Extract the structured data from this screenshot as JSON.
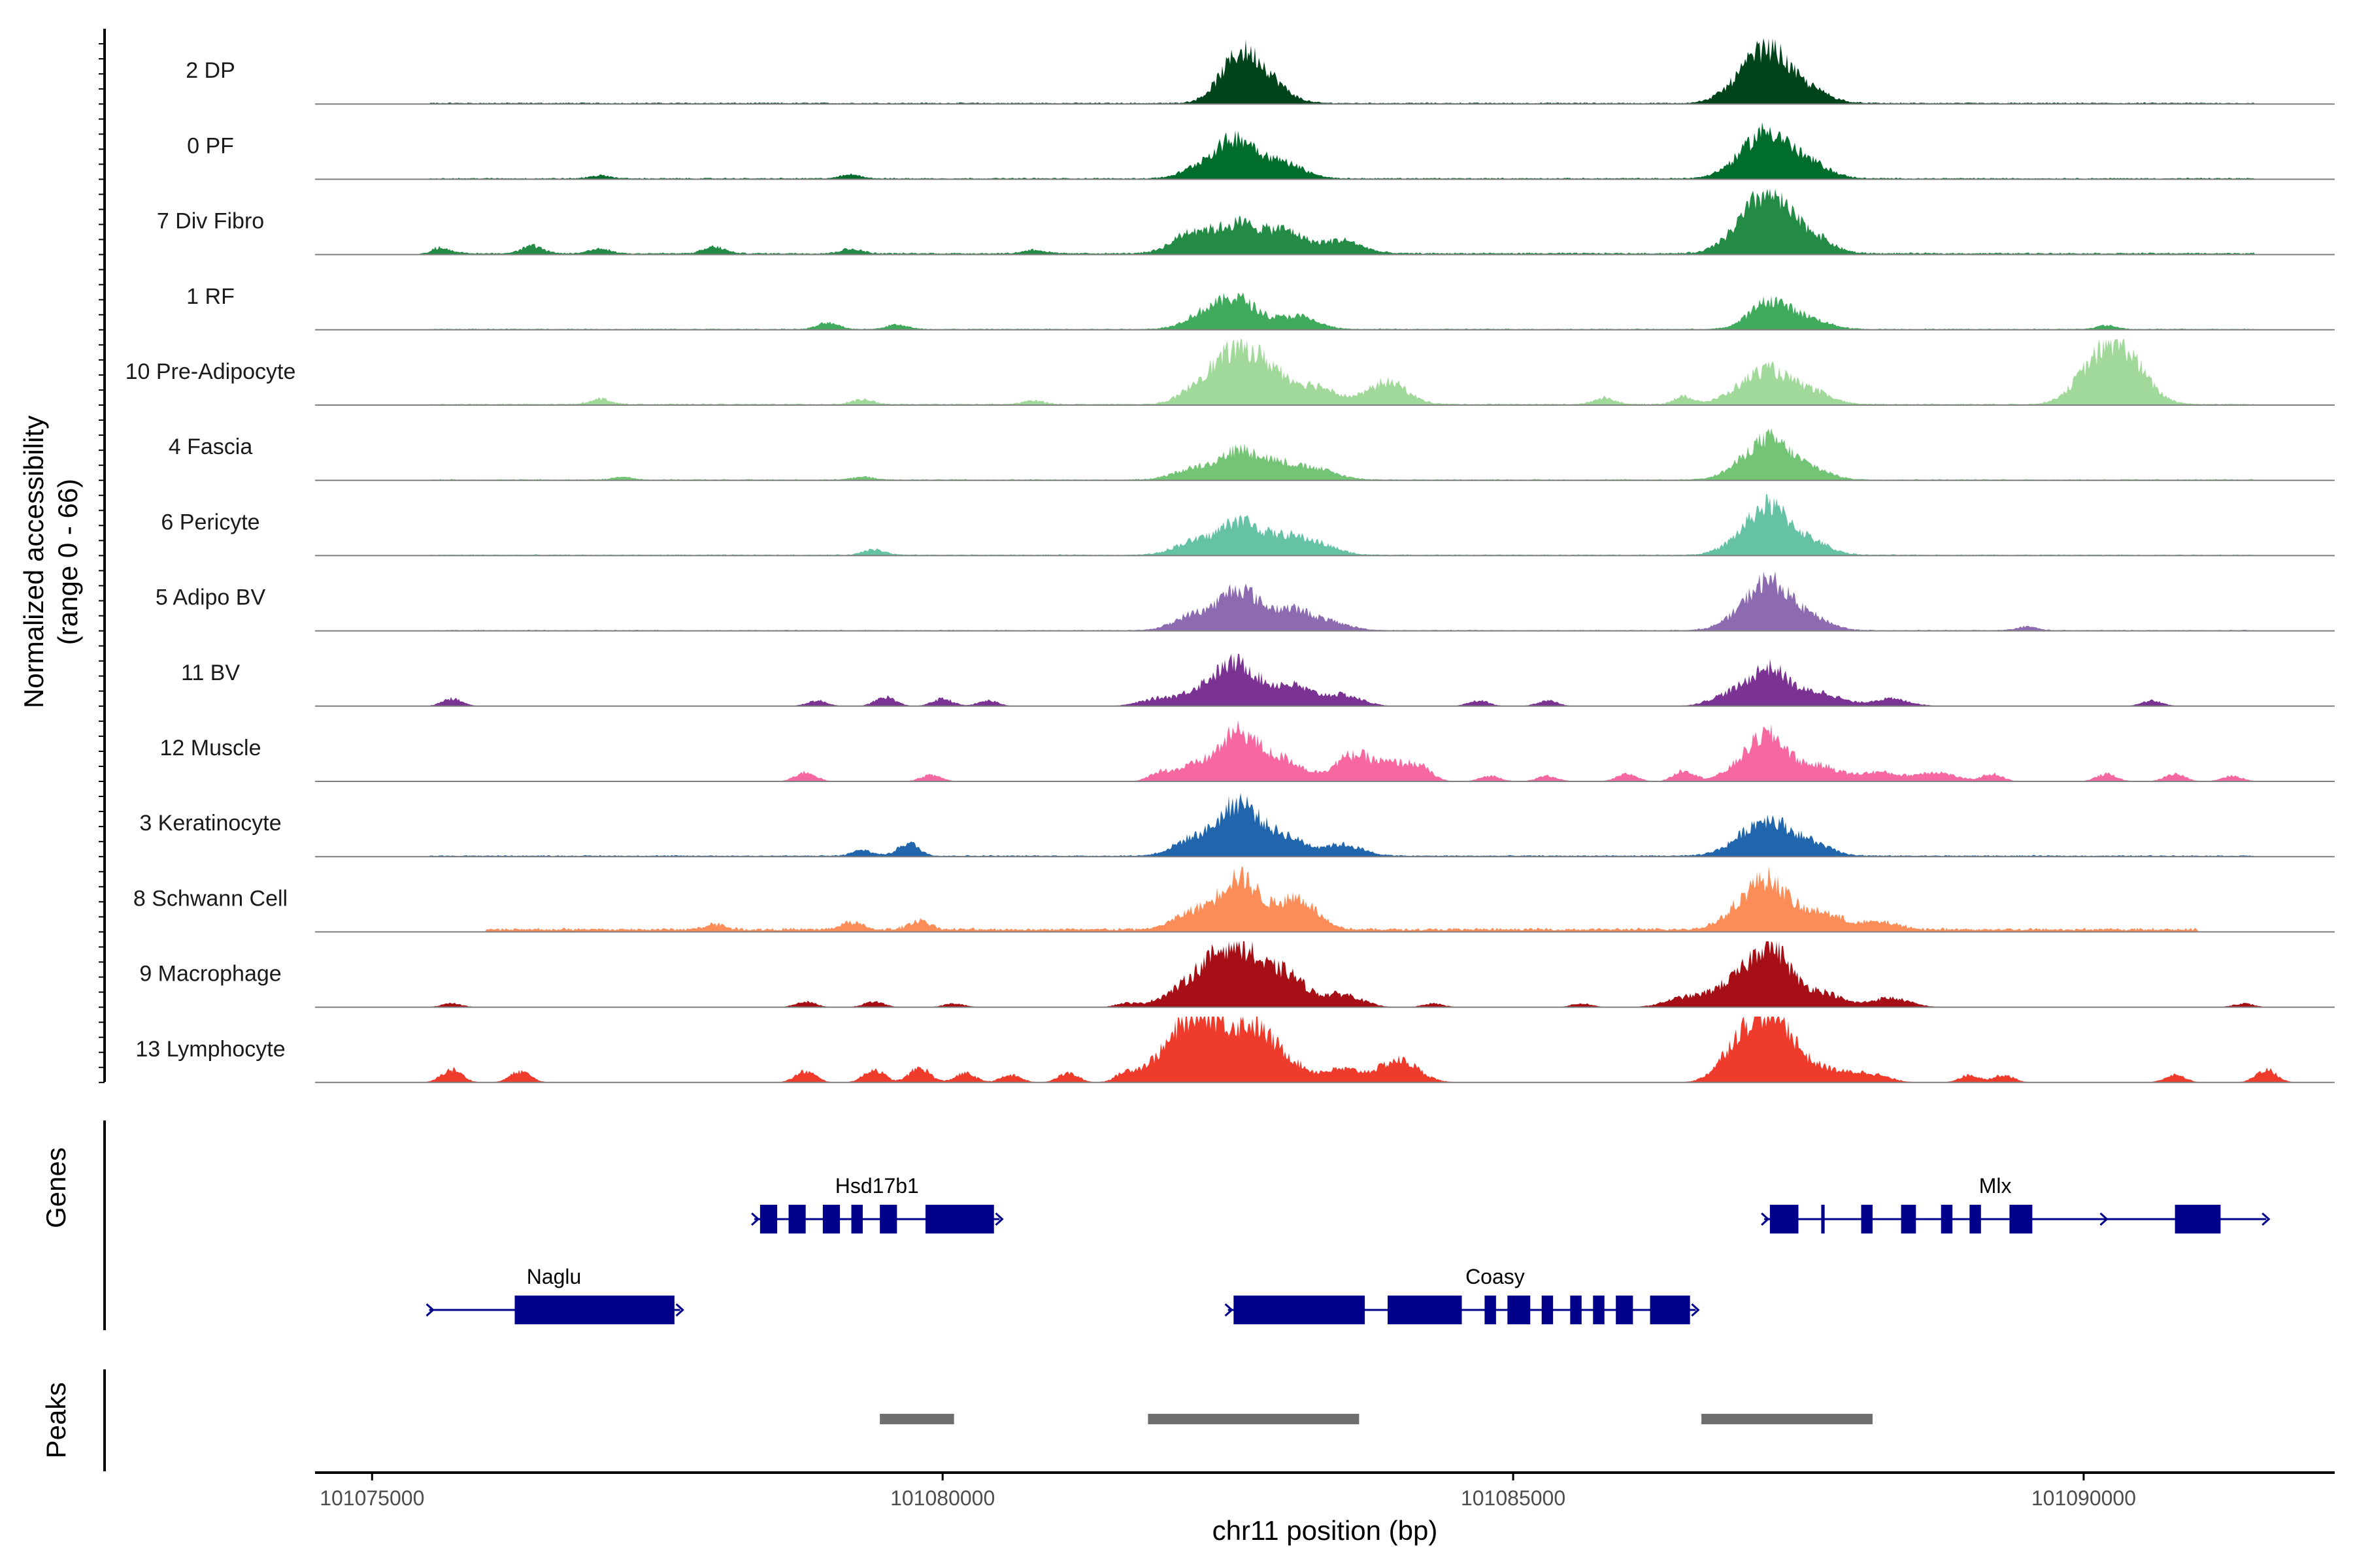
{
  "chart_data": {
    "type": "area",
    "title": "",
    "ylabel_line1": "Normalized accessibility",
    "ylabel_line2": "(range 0 - 66)",
    "y_range": [
      0,
      66
    ],
    "xlabel": "chr11 position (bp)",
    "xlim": [
      101074500,
      101092200
    ],
    "xticks": [
      101075000,
      101080000,
      101085000,
      101090000
    ],
    "xtick_labels": [
      "101075000",
      "101080000",
      "101085000",
      "101090000"
    ],
    "genes_label": "Genes",
    "peaks_label": "Peaks",
    "tracks": [
      {
        "name": "2 DP",
        "color": "#00441b",
        "peaks": [
          [
            101082600,
            48
          ],
          [
            101082850,
            20
          ],
          [
            101087000,
            18
          ],
          [
            101087250,
            52
          ],
          [
            101087600,
            14
          ]
        ],
        "noise": [
          [
            101075500,
            101091500,
            1.5
          ]
        ],
        "bumps": []
      },
      {
        "name": "0 PF",
        "color": "#006d2c",
        "peaks": [
          [
            101082300,
            14
          ],
          [
            101082600,
            40
          ],
          [
            101083000,
            16
          ],
          [
            101087000,
            14
          ],
          [
            101087250,
            45
          ],
          [
            101087600,
            16
          ]
        ],
        "noise": [
          [
            101075500,
            101091500,
            1.5
          ]
        ],
        "bumps": [
          [
            101079200,
            4
          ],
          [
            101077000,
            3
          ]
        ]
      },
      {
        "name": "7 Div Fibro",
        "color": "#238b45",
        "peaks": [
          [
            101082200,
            24
          ],
          [
            101082600,
            30
          ],
          [
            101083000,
            24
          ],
          [
            101083500,
            14
          ],
          [
            101087000,
            20
          ],
          [
            101087250,
            55
          ],
          [
            101087600,
            20
          ]
        ],
        "noise": [
          [
            101075500,
            101091500,
            2
          ]
        ],
        "bumps": [
          [
            101075600,
            6
          ],
          [
            101076400,
            8
          ],
          [
            101077000,
            5
          ],
          [
            101078000,
            7
          ],
          [
            101079200,
            5
          ],
          [
            101080800,
            4
          ]
        ]
      },
      {
        "name": "1 RF",
        "color": "#41ab5d",
        "peaks": [
          [
            101082300,
            16
          ],
          [
            101082600,
            30
          ],
          [
            101083100,
            14
          ],
          [
            101087250,
            30
          ],
          [
            101087600,
            10
          ]
        ],
        "noise": [
          [
            101075500,
            101091500,
            1.2
          ]
        ],
        "bumps": [
          [
            101079000,
            7
          ],
          [
            101079600,
            5
          ],
          [
            101090200,
            4
          ]
        ]
      },
      {
        "name": "10 Pre-Adipocyte",
        "color": "#a1d99b",
        "peaks": [
          [
            101082300,
            24
          ],
          [
            101082600,
            50
          ],
          [
            101082900,
            30
          ],
          [
            101083300,
            18
          ],
          [
            101083900,
            24
          ],
          [
            101087000,
            12
          ],
          [
            101087250,
            32
          ],
          [
            101087600,
            14
          ],
          [
            101090050,
            28
          ],
          [
            101090300,
            50
          ],
          [
            101090500,
            14
          ]
        ],
        "noise": [
          [
            101075500,
            101091500,
            1.5
          ]
        ],
        "bumps": [
          [
            101077000,
            6
          ],
          [
            101079300,
            5
          ],
          [
            101080800,
            4
          ],
          [
            101085800,
            7
          ],
          [
            101086500,
            8
          ]
        ]
      },
      {
        "name": "4 Fascia",
        "color": "#74c476",
        "peaks": [
          [
            101082200,
            12
          ],
          [
            101082600,
            30
          ],
          [
            101082950,
            16
          ],
          [
            101083300,
            10
          ],
          [
            101087000,
            10
          ],
          [
            101087250,
            40
          ],
          [
            101087600,
            12
          ]
        ],
        "noise": [
          [
            101075500,
            101091500,
            1.2
          ]
        ],
        "bumps": [
          [
            101077200,
            3
          ],
          [
            101079300,
            3
          ]
        ]
      },
      {
        "name": "6 Pericyte",
        "color": "#66c2a4",
        "peaks": [
          [
            101082200,
            14
          ],
          [
            101082600,
            36
          ],
          [
            101083000,
            18
          ],
          [
            101083300,
            10
          ],
          [
            101087000,
            12
          ],
          [
            101087250,
            48
          ],
          [
            101087600,
            14
          ]
        ],
        "noise": [
          [
            101075500,
            101091500,
            1.2
          ]
        ],
        "bumps": [
          [
            101079400,
            6
          ]
        ]
      },
      {
        "name": "5 Adipo BV",
        "color": "#8c6bb1",
        "peaks": [
          [
            101082200,
            16
          ],
          [
            101082600,
            44
          ],
          [
            101083050,
            22
          ],
          [
            101083400,
            8
          ],
          [
            101087000,
            12
          ],
          [
            101087250,
            48
          ],
          [
            101087600,
            14
          ]
        ],
        "noise": [
          [
            101075500,
            101091500,
            1
          ]
        ],
        "bumps": [
          [
            101089500,
            4
          ]
        ]
      },
      {
        "name": "11 BV",
        "color": "#7a3393",
        "peaks": [
          [
            101081900,
            8
          ],
          [
            101082300,
            18
          ],
          [
            101082600,
            42
          ],
          [
            101083050,
            22
          ],
          [
            101083500,
            12
          ],
          [
            101086900,
            12
          ],
          [
            101087250,
            40
          ],
          [
            101087700,
            14
          ],
          [
            101088300,
            8
          ]
        ],
        "noise": [],
        "bumps": [
          [
            101075700,
            8
          ],
          [
            101078900,
            6
          ],
          [
            101079500,
            10
          ],
          [
            101080000,
            8
          ],
          [
            101080400,
            6
          ],
          [
            101084700,
            6
          ],
          [
            101085300,
            6
          ],
          [
            101090600,
            6
          ]
        ]
      },
      {
        "name": "12 Muscle",
        "color": "#f768a1",
        "peaks": [
          [
            101082200,
            16
          ],
          [
            101082600,
            52
          ],
          [
            101083000,
            22
          ],
          [
            101083600,
            28
          ],
          [
            101084000,
            18
          ],
          [
            101087000,
            12
          ],
          [
            101087250,
            46
          ],
          [
            101087700,
            16
          ],
          [
            101088200,
            10
          ],
          [
            101088700,
            10
          ]
        ],
        "noise": [],
        "bumps": [
          [
            101078800,
            10
          ],
          [
            101079900,
            7
          ],
          [
            101081900,
            8
          ],
          [
            101084200,
            8
          ],
          [
            101084800,
            6
          ],
          [
            101085300,
            6
          ],
          [
            101086000,
            8
          ],
          [
            101086500,
            12
          ],
          [
            101089200,
            8
          ],
          [
            101090200,
            8
          ],
          [
            101090800,
            8
          ],
          [
            101091300,
            6
          ]
        ]
      },
      {
        "name": "3 Keratinocyte",
        "color": "#2166ac",
        "peaks": [
          [
            101082200,
            18
          ],
          [
            101082600,
            56
          ],
          [
            101083000,
            20
          ],
          [
            101083500,
            12
          ],
          [
            101087000,
            12
          ],
          [
            101087250,
            34
          ],
          [
            101087600,
            14
          ]
        ],
        "noise": [
          [
            101075500,
            101091500,
            1.5
          ]
        ],
        "bumps": [
          [
            101079700,
            14
          ],
          [
            101079300,
            6
          ]
        ]
      },
      {
        "name": "8 Schwann Cell",
        "color": "#fc8d59",
        "peaks": [
          [
            101082200,
            18
          ],
          [
            101082600,
            56
          ],
          [
            101083100,
            34
          ],
          [
            101087000,
            18
          ],
          [
            101087250,
            48
          ],
          [
            101087700,
            18
          ],
          [
            101088200,
            8
          ]
        ],
        "noise": [
          [
            101076000,
            101091000,
            4
          ]
        ],
        "bumps": [
          [
            101078000,
            6
          ],
          [
            101079200,
            8
          ],
          [
            101079800,
            10
          ]
        ]
      },
      {
        "name": "9 Macrophage",
        "color": "#a50f15",
        "peaks": [
          [
            101082000,
            10
          ],
          [
            101082300,
            34
          ],
          [
            101082600,
            60
          ],
          [
            101083000,
            36
          ],
          [
            101083500,
            14
          ],
          [
            101086500,
            10
          ],
          [
            101086900,
            22
          ],
          [
            101087250,
            66
          ],
          [
            101087700,
            16
          ],
          [
            101088300,
            10
          ]
        ],
        "noise": [],
        "bumps": [
          [
            101075700,
            4
          ],
          [
            101078800,
            6
          ],
          [
            101079400,
            6
          ],
          [
            101080100,
            4
          ],
          [
            101081600,
            4
          ],
          [
            101084300,
            4
          ],
          [
            101085600,
            4
          ],
          [
            101091400,
            4
          ]
        ]
      },
      {
        "name": "13 Lymphocyte",
        "color": "#ef3b2c",
        "peaks": [
          [
            101081900,
            20
          ],
          [
            101082200,
            58
          ],
          [
            101082400,
            30
          ],
          [
            101082700,
            52
          ],
          [
            101083000,
            22
          ],
          [
            101083500,
            14
          ],
          [
            101084000,
            24
          ],
          [
            101087000,
            44
          ],
          [
            101087300,
            66
          ],
          [
            101087700,
            14
          ],
          [
            101088100,
            10
          ]
        ],
        "noise": [],
        "bumps": [
          [
            101075700,
            14
          ],
          [
            101076300,
            12
          ],
          [
            101078800,
            12
          ],
          [
            101079400,
            14
          ],
          [
            101079800,
            16
          ],
          [
            101080200,
            10
          ],
          [
            101080600,
            8
          ],
          [
            101081100,
            10
          ],
          [
            101081600,
            8
          ],
          [
            101089000,
            8
          ],
          [
            101089300,
            8
          ],
          [
            101090800,
            8
          ],
          [
            101091600,
            14
          ]
        ]
      }
    ],
    "genes": [
      {
        "name": "Hsd17b1",
        "row": 1,
        "start": 101078350,
        "end": 101080500,
        "strand": "+",
        "exons": [
          [
            101078400,
            101078550
          ],
          [
            101078650,
            101078800
          ],
          [
            101078950,
            101079100
          ],
          [
            101079200,
            101079300
          ],
          [
            101079450,
            101079600
          ],
          [
            101079850,
            101080450
          ]
        ]
      },
      {
        "name": "Mlx",
        "row": 1,
        "start": 101087200,
        "end": 101091600,
        "strand": "+",
        "exons": [
          [
            101087250,
            101087500
          ],
          [
            101087700,
            101087730
          ],
          [
            101088050,
            101088150
          ],
          [
            101088400,
            101088530
          ],
          [
            101088750,
            101088850
          ],
          [
            101089000,
            101089100
          ],
          [
            101089350,
            101089550
          ],
          [
            101090800,
            101091200
          ]
        ]
      },
      {
        "name": "Naglu",
        "row": 2,
        "start": 101075500,
        "end": 101077700,
        "strand": "+",
        "exons": [
          [
            101076250,
            101077650
          ]
        ]
      },
      {
        "name": "Coasy",
        "row": 2,
        "start": 101082500,
        "end": 101086600,
        "strand": "+",
        "exons": [
          [
            101082550,
            101083700
          ],
          [
            101083900,
            101084550
          ],
          [
            101084750,
            101084850
          ],
          [
            101084950,
            101085150
          ],
          [
            101085250,
            101085350
          ],
          [
            101085500,
            101085600
          ],
          [
            101085700,
            101085800
          ],
          [
            101085900,
            101086050
          ],
          [
            101086200,
            101086550
          ]
        ]
      }
    ],
    "peaks": [
      [
        101079450,
        101080100
      ],
      [
        101081800,
        101083650
      ],
      [
        101086650,
        101088150
      ]
    ]
  }
}
